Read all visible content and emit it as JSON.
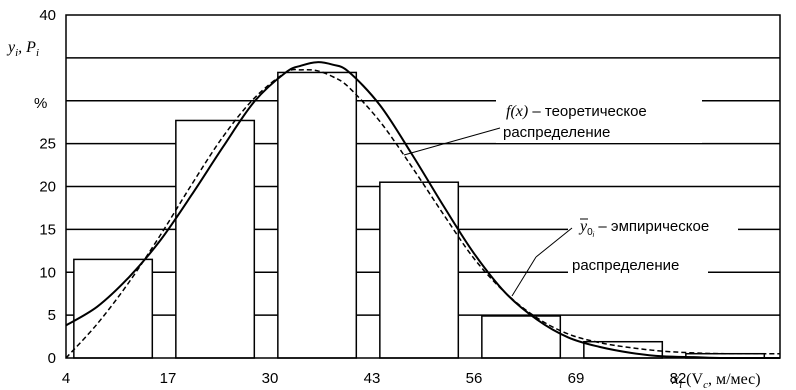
{
  "chart_data": {
    "type": "bar",
    "xlabel_parts": [
      "x",
      "i",
      " (V",
      "c",
      ", м/мес)"
    ],
    "ylabel_parts": [
      "y",
      "i",
      ", P",
      "i"
    ],
    "percent_label": "%",
    "ylim": [
      0,
      40
    ],
    "xlim": [
      4,
      95
    ],
    "grid": true,
    "x_ticks": [
      "4",
      "17",
      "30",
      "43",
      "56",
      "69",
      "82"
    ],
    "y_ticks": [
      "0",
      "5",
      "10",
      "15",
      "20",
      "25",
      "",
      "",
      "40"
    ],
    "bars": [
      {
        "x0": 5,
        "x1": 15,
        "value": 11.5
      },
      {
        "x0": 18,
        "x1": 28,
        "value": 27.7
      },
      {
        "x0": 31,
        "x1": 41,
        "value": 33.3
      },
      {
        "x0": 44,
        "x1": 54,
        "value": 20.5
      },
      {
        "x0": 57,
        "x1": 67,
        "value": 4.9
      },
      {
        "x0": 70,
        "x1": 80,
        "value": 1.9
      },
      {
        "x0": 83,
        "x1": 93,
        "value": 0.5
      }
    ],
    "series": [
      {
        "name": "f(x) – теоретическое распределение",
        "style": "solid",
        "x": [
          4,
          8,
          12,
          16,
          20,
          24,
          28,
          32,
          34,
          36,
          38,
          40,
          44,
          48,
          52,
          56,
          60,
          64,
          68,
          72,
          76,
          80,
          84,
          88,
          95
        ],
        "y": [
          3.8,
          6.0,
          9.4,
          13.7,
          19.0,
          24.6,
          29.9,
          33.3,
          34.1,
          34.5,
          34.2,
          33.4,
          29.5,
          23.9,
          17.9,
          12.2,
          7.6,
          4.5,
          2.4,
          1.3,
          0.6,
          0.2,
          0.1,
          0.0,
          0.0
        ]
      },
      {
        "name": "ȳ0i – эмпирическое распределение",
        "style": "dashed",
        "x": [
          4,
          8,
          12,
          16,
          20,
          24,
          28,
          32,
          34,
          36,
          38,
          40,
          44,
          48,
          52,
          56,
          60,
          64,
          68,
          72,
          76,
          80,
          84,
          88,
          95
        ],
        "y": [
          0.0,
          4.0,
          8.8,
          14.3,
          20.2,
          25.8,
          30.3,
          33.3,
          33.6,
          33.5,
          32.8,
          31.6,
          27.6,
          22.4,
          16.9,
          11.6,
          7.6,
          4.7,
          2.8,
          1.8,
          1.2,
          0.8,
          0.6,
          0.5,
          0.5
        ]
      }
    ],
    "annotations": {
      "theoretical": {
        "line1": "f(x)",
        "line1_rest": " – теоретическое",
        "line2": "распределение"
      },
      "empirical": {
        "sym": "y",
        "sub": "0",
        "subsub": "i",
        "rest": " – эмпирическое",
        "line2": "распределение"
      }
    }
  }
}
